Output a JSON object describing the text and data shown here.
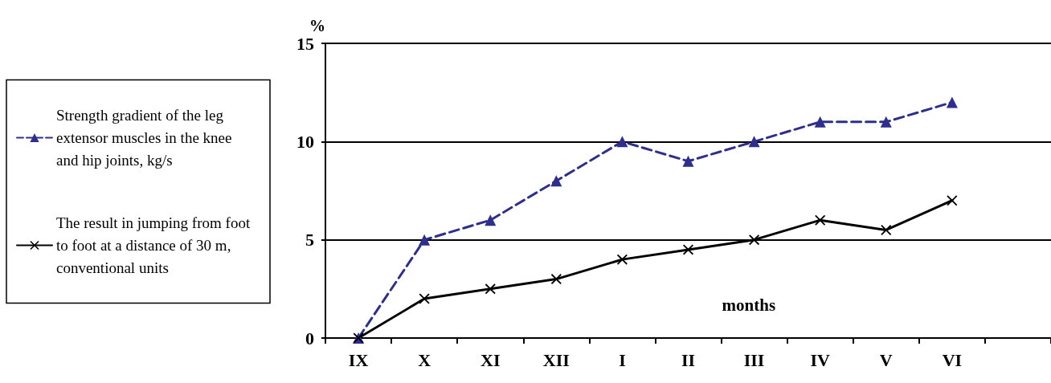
{
  "chart_data": {
    "type": "line",
    "xlabel": "months",
    "ylabel": "%",
    "categories": [
      "IX",
      "X",
      "XI",
      "XII",
      "I",
      "II",
      "III",
      "IV",
      "V",
      "VI",
      null
    ],
    "series": [
      {
        "name": "Strength gradient of the leg extensor muscles in the knee and hip joints, kg/s",
        "color": "#2e2e8f",
        "marker": "triangle",
        "line_style": "dashed",
        "values": [
          0,
          5,
          6,
          8,
          10,
          9,
          10,
          11,
          11,
          12,
          null
        ]
      },
      {
        "name": "The result in jumping from foot to foot at a distance of 30 m, conventional units",
        "color": "#000000",
        "marker": "cross",
        "line_style": "solid",
        "values": [
          0,
          2,
          2.5,
          3,
          4,
          4.5,
          5,
          6,
          5.5,
          7,
          null
        ]
      }
    ],
    "ylim": [
      0,
      15
    ],
    "yticks": [
      0,
      5,
      10,
      15
    ],
    "grid": "y",
    "legend": "left"
  }
}
